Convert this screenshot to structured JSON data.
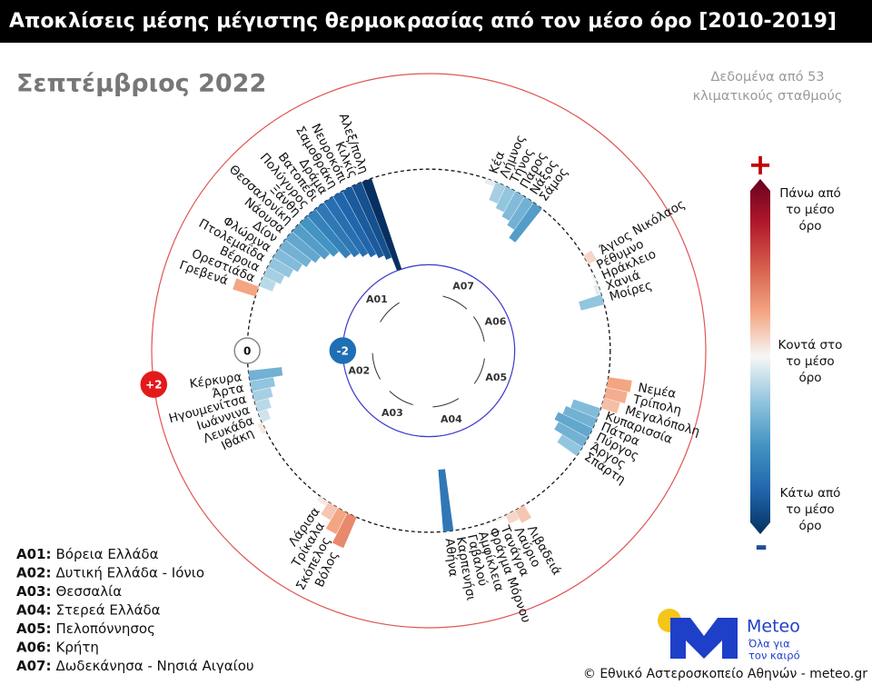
{
  "chart_data": {
    "type": "radial_bar",
    "title": "Αποκλίσεις μέσης μέγιστης θερμοκρασίας από τον μέσο όρο [2010-2019]",
    "subtitle": "Σεπτέμβριος 2022",
    "note": [
      "Δεδομένα από 53",
      "κλιματικούς σταθμούς"
    ],
    "rlim": [
      -3.8,
      2
    ],
    "rticks": [
      -2,
      0,
      {
        "value": 2,
        "label": "+2"
      }
    ],
    "color_domain": [
      -2,
      2
    ],
    "colors": [
      "#053061",
      "#2166ac",
      "#4393c3",
      "#92c5de",
      "#f7f7f7",
      "#f4a582",
      "#d6604d",
      "#b2182b",
      "#67001f"
    ],
    "groups": [
      {
        "code": "A01",
        "stations": [
          "Γρεβενά",
          "Ορεστιάδα",
          "Βέροια",
          "Πτολεμαΐδα",
          "Φλώρινα",
          "Δίον",
          "Νάουσα",
          "Θεσσαλονίκη",
          "Ξάνθη",
          "Πολύγυρος",
          "Βατοπέδι",
          "Δράμα",
          "Σαμοθράκη",
          "Νευροκόπι",
          "Κιλκίς",
          "Αλεξ/πολη"
        ],
        "values": [
          0.5,
          -0.3,
          -0.4,
          -0.5,
          -0.6,
          -0.7,
          -0.8,
          -0.9,
          -1.0,
          -1.2,
          -1.3,
          -1.4,
          -1.5,
          -1.6,
          -1.7,
          -2.0
        ]
      },
      {
        "code": "A07",
        "stations": [
          "Κέα",
          "Λήμνος",
          "Τήνος",
          "Πάρος",
          "Νάξος",
          "Σάμος"
        ],
        "values": [
          -0.1,
          -0.4,
          -0.5,
          -0.6,
          -0.7,
          -0.9
        ]
      },
      {
        "code": "A06",
        "stations": [
          "Άγιος Νικόλαος",
          "Ρέθυμνο",
          "Ηράκλειο",
          "Χανιά",
          "Μοίρες"
        ],
        "values": [
          0.2,
          0.0,
          -0.05,
          -0.1,
          -0.5
        ]
      },
      {
        "code": "A05",
        "stations": [
          "Νεμέα",
          "Τρίπολη",
          "Μεγαλόπολη",
          "Κυπαρισσία",
          "Πάτρα",
          "Πύργος",
          "Άργος",
          "Σπάρτη"
        ],
        "values": [
          0.5,
          0.45,
          0.35,
          -0.6,
          -0.7,
          -0.8,
          -0.7,
          -0.5
        ]
      },
      {
        "code": "A04",
        "stations": [
          "Λιβαδειά",
          "Λαύριο",
          "Τανάγρα",
          "Φράγμα Μόρνου",
          "Αμφίκλεια",
          "Γαβαλού",
          "Καρπενήσι",
          "Αθήνα"
        ],
        "values": [
          0.3,
          0.2,
          0.05,
          0.0,
          0.0,
          0.0,
          0.0,
          -1.3
        ]
      },
      {
        "code": "A03",
        "stations": [
          "Βόλος",
          "Σκόπελος",
          "Τρίκαλα",
          "Λάρισα"
        ],
        "values": [
          0.7,
          0.5,
          0.3,
          0.1
        ]
      },
      {
        "code": "A02",
        "stations": [
          "Ιθάκη",
          "Λευκάδα",
          "Ιωάννινα",
          "Ηγουμενίτσα",
          "Άρτα",
          "Κέρκυρα"
        ],
        "values": [
          0.1,
          -0.2,
          -0.3,
          -0.4,
          -0.5,
          -0.7
        ]
      }
    ],
    "colorbar": {
      "plus": "+",
      "minus": "-",
      "labels": [
        [
          "Πάνω από",
          "το μέσο",
          "όρο"
        ],
        [
          "Κοντά στο",
          "το μέσο",
          "όρο"
        ],
        [
          "Κάτω από",
          "το μέσο",
          "όρο"
        ]
      ]
    },
    "legend": [
      {
        "code": "A01:",
        "name": "Βόρεια Ελλάδα"
      },
      {
        "code": "A02:",
        "name": "Δυτική Ελλάδα - Ιόνιο"
      },
      {
        "code": "A03:",
        "name": "Θεσσαλία"
      },
      {
        "code": "A04:",
        "name": "Στερεά Ελλάδα"
      },
      {
        "code": "A05:",
        "name": "Πελοπόννησος"
      },
      {
        "code": "A06:",
        "name": "Κρήτη"
      },
      {
        "code": "A07:",
        "name": "Δωδεκάνησα - Νησιά Αιγαίου"
      }
    ]
  },
  "logo": {
    "name": "Meteo",
    "tagline": [
      "Όλα για",
      "τον καιρό"
    ]
  },
  "footer": "© Εθνικό Αστεροσκοπείο Αθηνών - meteo.gr"
}
